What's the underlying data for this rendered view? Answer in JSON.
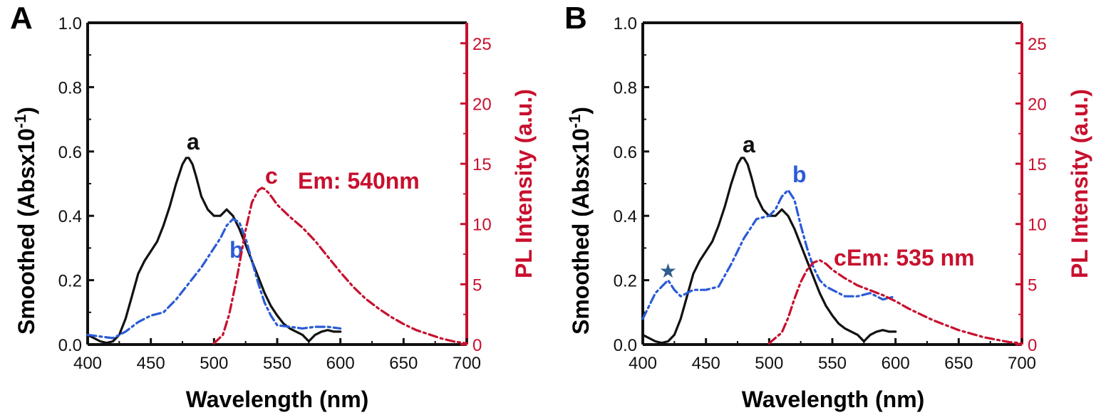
{
  "colors": {
    "black": "#111111",
    "blue": "#2a5bd7",
    "red": "#c8102e",
    "star": "#2f5d8c"
  },
  "chart_data": [
    {
      "type": "line",
      "panel": "A",
      "xlabel": "Wavelength (nm)",
      "ylabel": "Smoothed (Absx10",
      "ylabel_sup": "-1",
      "ylabel_close": ")",
      "y2label": "PL Intensity (a.u.)",
      "xlim": [
        400,
        700
      ],
      "ylim": [
        0,
        1.0
      ],
      "y2lim": [
        0,
        26.7
      ],
      "xticks": [
        "400",
        "450",
        "500",
        "550",
        "600",
        "650",
        "700"
      ],
      "yticks": [
        "0.0",
        "0.2",
        "0.4",
        "0.6",
        "0.8",
        "1.0"
      ],
      "y2ticks": [
        "0",
        "5",
        "10",
        "15",
        "20",
        "25"
      ],
      "emission_label": "Em: 540nm",
      "series": [
        {
          "label": "a",
          "color": "black",
          "style": "solid",
          "axis": "left",
          "x": [
            400,
            405,
            410,
            415,
            420,
            425,
            430,
            435,
            440,
            445,
            450,
            455,
            460,
            465,
            470,
            475,
            478,
            480,
            483,
            486,
            490,
            495,
            500,
            505,
            510,
            515,
            520,
            525,
            530,
            535,
            540,
            545,
            550,
            555,
            560,
            565,
            570,
            575,
            580,
            585,
            590,
            595,
            600
          ],
          "y": [
            0.03,
            0.02,
            0.01,
            0.005,
            0.01,
            0.03,
            0.08,
            0.15,
            0.22,
            0.26,
            0.29,
            0.32,
            0.37,
            0.43,
            0.5,
            0.56,
            0.58,
            0.58,
            0.56,
            0.52,
            0.46,
            0.42,
            0.4,
            0.4,
            0.42,
            0.4,
            0.36,
            0.31,
            0.26,
            0.21,
            0.16,
            0.12,
            0.09,
            0.065,
            0.05,
            0.04,
            0.03,
            0.01,
            0.03,
            0.04,
            0.045,
            0.04,
            0.04
          ]
        },
        {
          "label": "b",
          "color": "blue",
          "style": "dashdot",
          "axis": "left",
          "x": [
            400,
            410,
            420,
            430,
            440,
            450,
            460,
            470,
            480,
            490,
            500,
            505,
            510,
            515,
            520,
            525,
            530,
            535,
            540,
            545,
            550,
            560,
            570,
            580,
            590,
            600
          ],
          "y": [
            0.03,
            0.025,
            0.02,
            0.04,
            0.07,
            0.09,
            0.1,
            0.14,
            0.19,
            0.24,
            0.3,
            0.33,
            0.37,
            0.39,
            0.38,
            0.33,
            0.26,
            0.19,
            0.13,
            0.09,
            0.06,
            0.055,
            0.05,
            0.055,
            0.055,
            0.05
          ]
        },
        {
          "label": "c",
          "color": "red",
          "style": "dashdot",
          "axis": "right",
          "x": [
            500,
            507,
            512,
            518,
            525,
            530,
            535,
            538,
            540,
            543,
            546,
            550,
            560,
            570,
            580,
            590,
            600,
            610,
            620,
            630,
            640,
            650,
            660,
            670,
            680,
            690,
            700
          ],
          "y": [
            0.1,
            0.8,
            2.5,
            5.5,
            9.5,
            11.8,
            12.8,
            13.0,
            12.9,
            12.6,
            12.2,
            11.6,
            10.6,
            9.7,
            8.6,
            7.3,
            6.0,
            4.8,
            3.8,
            3.0,
            2.3,
            1.7,
            1.2,
            0.85,
            0.5,
            0.25,
            0.1
          ]
        }
      ]
    },
    {
      "type": "line",
      "panel": "B",
      "xlabel": "Wavelength (nm)",
      "ylabel": "Smoothed (Absx10",
      "ylabel_sup": "-1",
      "ylabel_close": ")",
      "y2label": "PL Intensity (a.u.)",
      "xlim": [
        400,
        700
      ],
      "ylim": [
        0,
        1.0
      ],
      "y2lim": [
        0,
        26.7
      ],
      "xticks": [
        "400",
        "450",
        "500",
        "550",
        "600",
        "650",
        "700"
      ],
      "yticks": [
        "0.0",
        "0.2",
        "0.4",
        "0.6",
        "0.8",
        "1.0"
      ],
      "y2ticks": [
        "0",
        "5",
        "10",
        "15",
        "20",
        "25"
      ],
      "emission_label": "Em: 535 nm",
      "star_marker": {
        "x": 420,
        "y": 0.23,
        "glyph": "★"
      },
      "series": [
        {
          "label": "a",
          "color": "black",
          "style": "solid",
          "axis": "left",
          "x": [
            400,
            405,
            410,
            415,
            420,
            425,
            430,
            435,
            440,
            445,
            450,
            455,
            460,
            465,
            470,
            475,
            478,
            480,
            483,
            486,
            490,
            495,
            500,
            505,
            510,
            515,
            520,
            525,
            530,
            535,
            540,
            545,
            550,
            555,
            560,
            565,
            570,
            575,
            580,
            585,
            590,
            595,
            600
          ],
          "y": [
            0.03,
            0.02,
            0.01,
            0.005,
            0.01,
            0.03,
            0.08,
            0.15,
            0.22,
            0.26,
            0.29,
            0.32,
            0.37,
            0.43,
            0.5,
            0.56,
            0.58,
            0.58,
            0.56,
            0.52,
            0.46,
            0.42,
            0.4,
            0.4,
            0.42,
            0.4,
            0.36,
            0.31,
            0.26,
            0.21,
            0.16,
            0.12,
            0.09,
            0.065,
            0.05,
            0.04,
            0.03,
            0.01,
            0.03,
            0.04,
            0.045,
            0.04,
            0.04
          ]
        },
        {
          "label": "b",
          "color": "blue",
          "style": "dashdot",
          "axis": "left",
          "x": [
            400,
            410,
            415,
            420,
            425,
            430,
            440,
            450,
            460,
            470,
            480,
            490,
            500,
            505,
            510,
            515,
            520,
            525,
            530,
            535,
            540,
            545,
            550,
            560,
            570,
            580,
            590,
            600
          ],
          "y": [
            0.08,
            0.16,
            0.18,
            0.2,
            0.17,
            0.15,
            0.17,
            0.17,
            0.18,
            0.25,
            0.33,
            0.39,
            0.4,
            0.42,
            0.46,
            0.48,
            0.45,
            0.37,
            0.3,
            0.24,
            0.2,
            0.18,
            0.17,
            0.15,
            0.15,
            0.16,
            0.14,
            0.15
          ]
        },
        {
          "label": "c",
          "color": "red",
          "style": "dashdot",
          "axis": "right",
          "x": [
            500,
            510,
            515,
            520,
            525,
            530,
            535,
            540,
            545,
            550,
            560,
            570,
            580,
            590,
            600,
            610,
            620,
            630,
            640,
            650,
            660,
            670,
            680,
            690,
            700
          ],
          "y": [
            0.1,
            1.0,
            2.2,
            3.8,
            5.2,
            6.2,
            6.8,
            7.0,
            6.7,
            6.2,
            5.5,
            4.9,
            4.5,
            4.1,
            3.6,
            3.0,
            2.5,
            2.0,
            1.6,
            1.2,
            0.9,
            0.6,
            0.4,
            0.2,
            0.1
          ]
        }
      ]
    }
  ]
}
